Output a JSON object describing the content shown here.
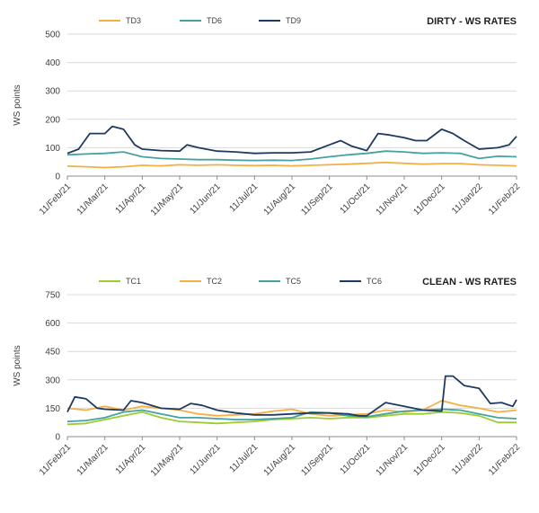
{
  "x_ticks": [
    "11/Feb/21",
    "11/Mar/21",
    "11/Apr/21",
    "11/May/21",
    "11/Jun/21",
    "11/Jul/21",
    "11/Aug/21",
    "11/Sep/21",
    "11/Oct/21",
    "11/Nov/21",
    "11/Dec/21",
    "11/Jan/22",
    "11/Feb/22"
  ],
  "chart_data": [
    {
      "type": "line",
      "title": "DIRTY - WS RATES",
      "ylabel": "WS points",
      "xlabel": "",
      "ylim": [
        0,
        500
      ],
      "yticks": [
        0,
        100,
        200,
        300,
        400,
        500
      ],
      "grid": true,
      "legend": "top-left",
      "x_unit": "months from 11/Feb/21",
      "series": [
        {
          "name": "TD3",
          "color": "#f5b041",
          "x": [
            0,
            0.5,
            1,
            1.5,
            2,
            2.5,
            3,
            3.5,
            4,
            4.5,
            5,
            5.5,
            6,
            6.5,
            7,
            7.5,
            8,
            8.5,
            9,
            9.5,
            10,
            10.5,
            11,
            11.5,
            12
          ],
          "values": [
            35,
            33,
            30,
            33,
            38,
            36,
            40,
            38,
            40,
            38,
            37,
            38,
            36,
            38,
            40,
            42,
            45,
            48,
            45,
            42,
            44,
            44,
            40,
            38,
            36
          ]
        },
        {
          "name": "TD6",
          "color": "#45a29e",
          "x": [
            0,
            0.5,
            1,
            1.5,
            2,
            2.5,
            3,
            3.5,
            4,
            4.5,
            5,
            5.5,
            6,
            6.5,
            7,
            7.5,
            8,
            8.5,
            9,
            9.5,
            10,
            10.5,
            11,
            11.5,
            12
          ],
          "values": [
            75,
            78,
            80,
            85,
            68,
            62,
            60,
            58,
            58,
            56,
            55,
            56,
            55,
            60,
            68,
            75,
            80,
            88,
            85,
            80,
            82,
            80,
            62,
            70,
            68
          ]
        },
        {
          "name": "TD9",
          "color": "#1f3a60",
          "x": [
            0,
            0.3,
            0.6,
            1,
            1.2,
            1.5,
            1.8,
            2,
            2.5,
            3,
            3.2,
            3.5,
            4,
            4.5,
            5,
            5.5,
            6,
            6.5,
            7,
            7.3,
            7.6,
            8,
            8.3,
            8.6,
            9,
            9.3,
            9.6,
            10,
            10.3,
            10.6,
            11,
            11.5,
            11.8,
            12
          ],
          "values": [
            80,
            95,
            150,
            150,
            175,
            165,
            110,
            95,
            90,
            88,
            110,
            100,
            88,
            85,
            80,
            82,
            82,
            85,
            110,
            125,
            105,
            90,
            150,
            145,
            135,
            125,
            125,
            165,
            150,
            125,
            95,
            100,
            110,
            140
          ]
        }
      ]
    },
    {
      "type": "line",
      "title": "CLEAN - WS RATES",
      "ylabel": "WS points",
      "xlabel": "",
      "ylim": [
        0,
        750
      ],
      "yticks": [
        0,
        150,
        300,
        450,
        600,
        750
      ],
      "grid": true,
      "legend": "top-left",
      "x_unit": "months from 11/Feb/21",
      "series": [
        {
          "name": "TC1",
          "color": "#9acd32",
          "x": [
            0,
            0.5,
            1,
            1.5,
            2,
            2.5,
            3,
            3.5,
            4,
            4.5,
            5,
            5.5,
            6,
            6.5,
            7,
            7.5,
            8,
            8.5,
            9,
            9.5,
            10,
            10.5,
            11,
            11.5,
            12
          ],
          "values": [
            65,
            70,
            90,
            110,
            130,
            100,
            80,
            75,
            70,
            75,
            80,
            90,
            95,
            100,
            95,
            100,
            100,
            110,
            120,
            120,
            130,
            125,
            110,
            75,
            75
          ]
        },
        {
          "name": "TC2",
          "color": "#f5b041",
          "x": [
            0,
            0.5,
            1,
            1.5,
            2,
            2.5,
            3,
            3.5,
            4,
            4.5,
            5,
            5.5,
            6,
            6.5,
            7,
            7.5,
            8,
            8.5,
            9,
            9.5,
            10,
            10.5,
            11,
            11.5,
            12
          ],
          "values": [
            150,
            140,
            160,
            140,
            160,
            150,
            140,
            120,
            110,
            115,
            120,
            135,
            145,
            120,
            110,
            115,
            120,
            140,
            130,
            140,
            190,
            165,
            150,
            130,
            140
          ]
        },
        {
          "name": "TC5",
          "color": "#45a29e",
          "x": [
            0,
            0.5,
            1,
            1.5,
            2,
            2.5,
            3,
            3.5,
            4,
            4.5,
            5,
            5.5,
            6,
            6.5,
            7,
            7.5,
            8,
            8.5,
            9,
            9.5,
            10,
            10.5,
            11,
            11.5,
            12
          ],
          "values": [
            80,
            85,
            100,
            130,
            140,
            120,
            100,
            100,
            95,
            90,
            90,
            95,
            100,
            130,
            125,
            110,
            105,
            120,
            135,
            140,
            145,
            140,
            120,
            100,
            95
          ]
        },
        {
          "name": "TC6",
          "color": "#1f3a60",
          "x": [
            0,
            0.2,
            0.5,
            0.8,
            1,
            1.5,
            1.7,
            2,
            2.5,
            3,
            3.3,
            3.6,
            4,
            4.5,
            5,
            5.5,
            6,
            6.5,
            7,
            7.5,
            7.8,
            8,
            8.5,
            9,
            9.5,
            10,
            10.1,
            10.3,
            10.6,
            11,
            11.3,
            11.6,
            11.9,
            12
          ],
          "values": [
            130,
            210,
            200,
            150,
            145,
            140,
            190,
            180,
            150,
            145,
            175,
            165,
            140,
            125,
            115,
            115,
            120,
            125,
            125,
            120,
            110,
            110,
            180,
            160,
            140,
            135,
            320,
            320,
            270,
            255,
            175,
            180,
            160,
            195
          ]
        }
      ]
    }
  ]
}
